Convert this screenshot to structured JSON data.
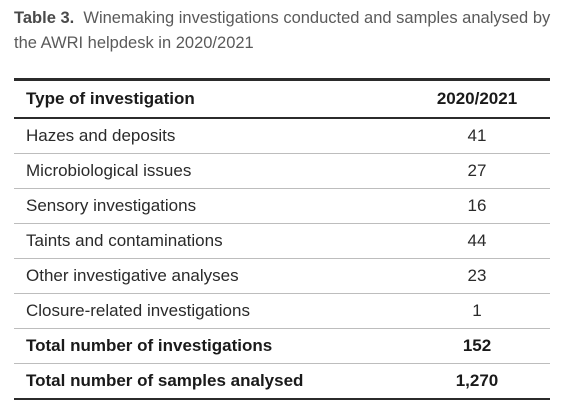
{
  "caption": {
    "label": "Table 3.",
    "text": "Winemaking investigations conducted and samples analysed by the AWRI helpdesk in 2020/2021"
  },
  "table": {
    "header": {
      "label": "Type of investigation",
      "value": "2020/2021"
    },
    "rows": [
      {
        "label": "Hazes and deposits",
        "value": "41"
      },
      {
        "label": "Microbiological issues",
        "value": "27"
      },
      {
        "label": "Sensory investigations",
        "value": "16"
      },
      {
        "label": "Taints and contaminations",
        "value": "44"
      },
      {
        "label": "Other investigative analyses",
        "value": "23"
      },
      {
        "label": "Closure-related investigations",
        "value": "1"
      }
    ],
    "totals": [
      {
        "label": "Total number of investigations",
        "value": "152"
      },
      {
        "label": "Total number of samples analysed",
        "value": "1,270"
      }
    ]
  }
}
